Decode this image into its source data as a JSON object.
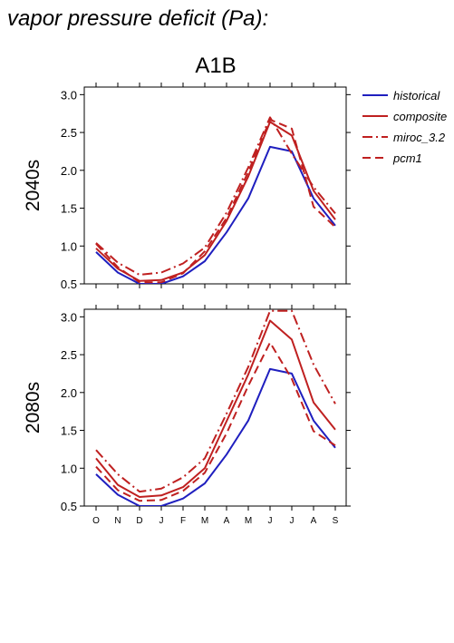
{
  "title": "vapor pressure deficit (Pa):",
  "scenario": "A1B",
  "chart_data": {
    "type": "line",
    "x": [
      "O",
      "N",
      "D",
      "J",
      "F",
      "M",
      "A",
      "M",
      "J",
      "J",
      "A",
      "S"
    ],
    "ylim": [
      0.5,
      3.1
    ],
    "yticks": [
      "0.5",
      "1.0",
      "1.5",
      "2.0",
      "2.5",
      "3.0"
    ],
    "legend": {
      "placement": "right",
      "entries": [
        "historical",
        "composite",
        "miroc_3.2",
        "pcm1"
      ]
    },
    "colors": {
      "historical": "#1f1fbf",
      "composite": "#bf2020",
      "miroc_3.2": "#bf2020",
      "pcm1": "#bf2020"
    },
    "panels": [
      {
        "label": "2040s",
        "series": [
          {
            "name": "historical",
            "style": "solid",
            "color": "#1f1fbf",
            "values": [
              0.92,
              0.65,
              0.5,
              0.5,
              0.6,
              0.8,
              1.18,
              1.63,
              2.31,
              2.25,
              1.63,
              1.27
            ]
          },
          {
            "name": "composite",
            "style": "solid",
            "color": "#bf2020",
            "values": [
              0.97,
              0.7,
              0.54,
              0.55,
              0.65,
              0.88,
              1.33,
              1.92,
              2.64,
              2.46,
              1.73,
              1.35
            ]
          },
          {
            "name": "miroc_3.2",
            "style": "dashdot",
            "color": "#bf2020",
            "values": [
              1.04,
              0.78,
              0.62,
              0.65,
              0.77,
              0.98,
              1.44,
              2.04,
              2.7,
              2.22,
              1.78,
              1.43
            ]
          },
          {
            "name": "pcm1",
            "style": "longdash",
            "color": "#bf2020",
            "values": [
              1.03,
              0.72,
              0.52,
              0.52,
              0.64,
              0.93,
              1.37,
              1.98,
              2.67,
              2.55,
              1.52,
              1.25
            ]
          }
        ]
      },
      {
        "label": "2080s",
        "series": [
          {
            "name": "historical",
            "style": "solid",
            "color": "#1f1fbf",
            "values": [
              0.92,
              0.65,
              0.5,
              0.5,
              0.6,
              0.8,
              1.18,
              1.63,
              2.31,
              2.25,
              1.63,
              1.27
            ]
          },
          {
            "name": "composite",
            "style": "solid",
            "color": "#bf2020",
            "values": [
              1.13,
              0.78,
              0.62,
              0.64,
              0.75,
              1.0,
              1.62,
              2.24,
              2.95,
              2.7,
              1.87,
              1.51
            ]
          },
          {
            "name": "miroc_3.2",
            "style": "dashdot",
            "color": "#bf2020",
            "values": [
              1.24,
              0.92,
              0.69,
              0.73,
              0.88,
              1.13,
              1.72,
              2.34,
              3.08,
              3.08,
              2.37,
              1.85
            ]
          },
          {
            "name": "pcm1",
            "style": "longdash",
            "color": "#bf2020",
            "values": [
              1.02,
              0.71,
              0.57,
              0.58,
              0.7,
              0.94,
              1.46,
              2.09,
              2.66,
              2.18,
              1.49,
              1.3
            ]
          }
        ]
      }
    ]
  }
}
